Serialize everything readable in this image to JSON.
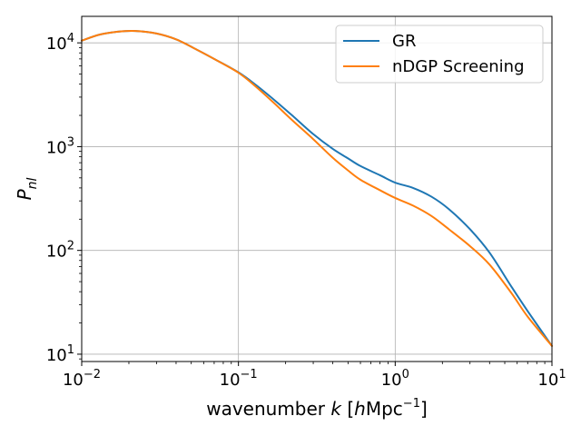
{
  "chart_data": {
    "type": "line",
    "xlabel": "wavenumber k [hMpc−1]",
    "ylabel": "Pnl",
    "x_scale": "log",
    "y_scale": "log",
    "xlim": [
      0.01,
      10
    ],
    "ylim": [
      8.5,
      18000
    ],
    "grid": true,
    "legend_position": "top-right",
    "x_ticks": [
      {
        "value": 0.01,
        "base": "10",
        "exp": "−2"
      },
      {
        "value": 0.1,
        "base": "10",
        "exp": "−1"
      },
      {
        "value": 1,
        "base": "10",
        "exp": "0"
      },
      {
        "value": 10,
        "base": "10",
        "exp": "1"
      }
    ],
    "y_ticks": [
      {
        "value": 10,
        "base": "10",
        "exp": "1"
      },
      {
        "value": 100,
        "base": "10",
        "exp": "2"
      },
      {
        "value": 1000,
        "base": "10",
        "exp": "3"
      },
      {
        "value": 10000,
        "base": "10",
        "exp": "4"
      }
    ],
    "series": [
      {
        "name": "GR",
        "color": "#1f77b4",
        "x": [
          0.01,
          0.013,
          0.017,
          0.022,
          0.03,
          0.04,
          0.055,
          0.07,
          0.1,
          0.13,
          0.17,
          0.22,
          0.3,
          0.4,
          0.5,
          0.6,
          0.8,
          1.0,
          1.3,
          1.7,
          2.2,
          3.0,
          4.0,
          5.5,
          7.0,
          10.0
        ],
        "y": [
          10500,
          12000,
          12800,
          13000,
          12300,
          10800,
          8500,
          7000,
          5200,
          3900,
          2800,
          2000,
          1320,
          950,
          770,
          650,
          530,
          450,
          400,
          330,
          250,
          160,
          95,
          45,
          26,
          12
        ]
      },
      {
        "name": "nDGP Screening",
        "color": "#ff7f0e",
        "x": [
          0.01,
          0.013,
          0.017,
          0.022,
          0.03,
          0.04,
          0.055,
          0.07,
          0.1,
          0.13,
          0.17,
          0.22,
          0.3,
          0.4,
          0.5,
          0.6,
          0.8,
          1.0,
          1.3,
          1.7,
          2.2,
          3.0,
          4.0,
          5.5,
          7.0,
          10.0
        ],
        "y": [
          10500,
          12000,
          12800,
          13000,
          12300,
          10800,
          8500,
          7000,
          5150,
          3750,
          2600,
          1800,
          1180,
          780,
          590,
          480,
          380,
          320,
          270,
          215,
          160,
          110,
          73,
          39,
          23,
          12
        ]
      }
    ]
  }
}
